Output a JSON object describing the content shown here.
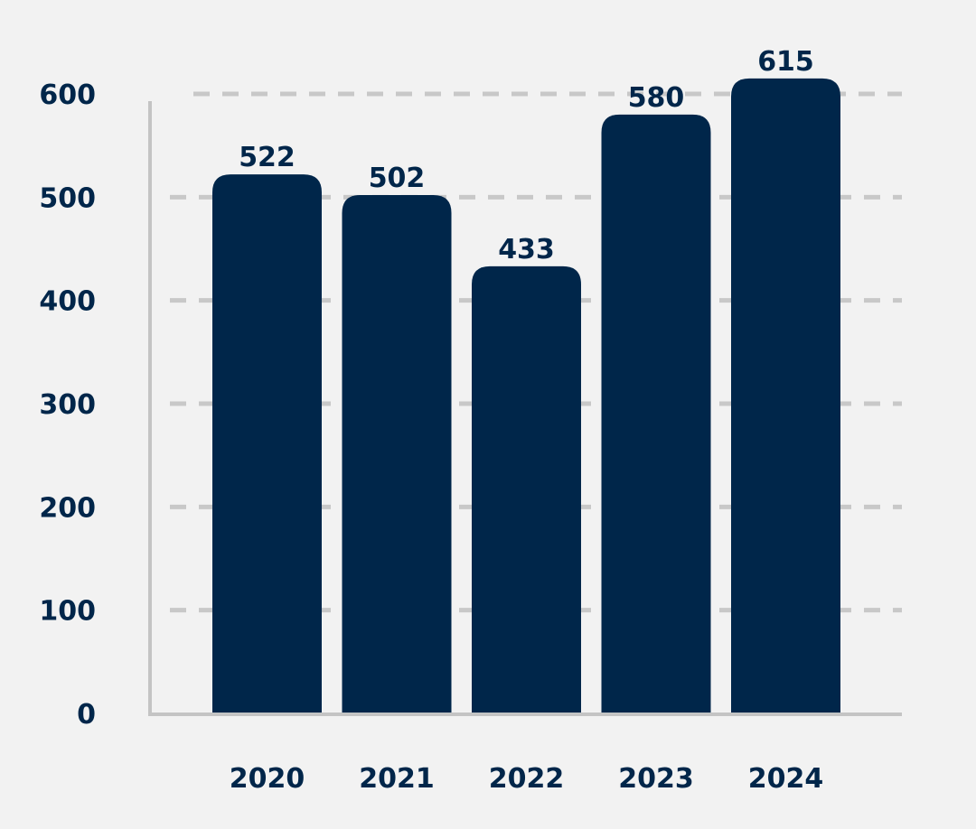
{
  "chart_data": {
    "type": "bar",
    "categories": [
      "2020",
      "2021",
      "2022",
      "2023",
      "2024"
    ],
    "values": [
      522,
      502,
      433,
      580,
      615
    ],
    "data_labels": [
      "522",
      "502",
      "433",
      "580",
      "615"
    ],
    "y_ticks": [
      0,
      100,
      200,
      300,
      400,
      500,
      600
    ],
    "y_tick_labels": [
      "0",
      "100",
      "200",
      "300",
      "400",
      "500",
      "600"
    ],
    "ylim": [
      0,
      600
    ],
    "grid": "dashed horizontal",
    "title": "",
    "xlabel": "",
    "ylabel": "",
    "colors": {
      "bar": "#00264a",
      "text": "#00264a",
      "grid": "#c8c8c8",
      "axis": "#c4c4c4",
      "background": "#f2f2f2"
    }
  }
}
